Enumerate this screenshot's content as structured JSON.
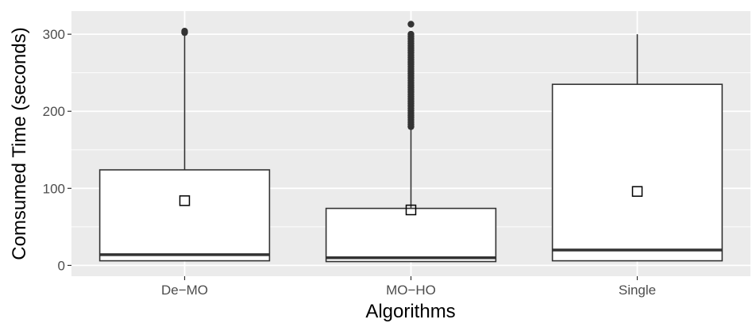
{
  "chart_data": {
    "type": "boxplot",
    "title": "",
    "xlabel": "Algorithms",
    "ylabel": "Comsumed Time (seconds)",
    "ylim": [
      -14,
      330
    ],
    "y_ticks": [
      0,
      100,
      200,
      300
    ],
    "y_minor_ticks": [
      50,
      150,
      250
    ],
    "grid": true,
    "legend": "none",
    "colors": {
      "panel": "#ebebeb",
      "grid": "#ffffff",
      "box_fill": "#ffffff",
      "stroke": "#333333"
    },
    "categories": [
      "De−MO",
      "MO−HO",
      "Single"
    ],
    "boxes": [
      {
        "category": "De−MO",
        "whisker_low": 6,
        "q1": 6,
        "median": 14,
        "q3": 124,
        "whisker_high": 300,
        "mean": 84,
        "outliers": [
          302,
          304
        ]
      },
      {
        "category": "MO−HO",
        "whisker_low": 5,
        "q1": 5,
        "median": 10,
        "q3": 74,
        "whisker_high": 178,
        "mean": 72,
        "outliers": [
          180,
          183,
          186,
          189,
          192,
          195,
          198,
          201,
          204,
          207,
          210,
          213,
          216,
          219,
          222,
          225,
          228,
          231,
          234,
          237,
          240,
          243,
          246,
          249,
          252,
          255,
          258,
          261,
          264,
          267,
          270,
          273,
          276,
          279,
          282,
          285,
          288,
          291,
          294,
          297,
          300,
          313
        ]
      },
      {
        "category": "Single",
        "whisker_low": 6,
        "q1": 6,
        "median": 20,
        "q3": 235,
        "whisker_high": 300,
        "mean": 96,
        "outliers": []
      }
    ]
  }
}
